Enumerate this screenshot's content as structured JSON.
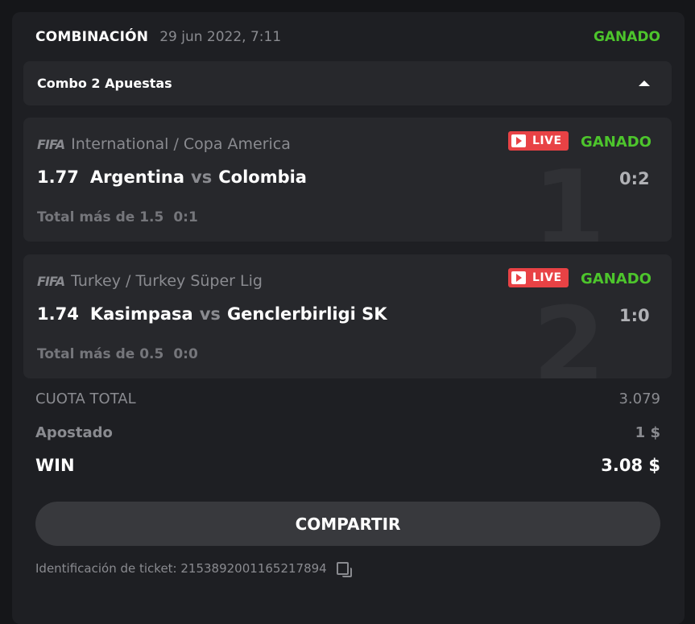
{
  "header": {
    "title": "COMBINACIÓN",
    "date": "29 jun 2022, 7:11",
    "status": "GANADO"
  },
  "combo": {
    "label": "Combo 2 Apuestas"
  },
  "bets": [
    {
      "index": "1",
      "provider": "FIFA",
      "league": "International / Copa America",
      "live": "LIVE",
      "status": "GANADO",
      "odd": "1.77",
      "home": "Argentina",
      "vs": "vs",
      "away": "Colombia",
      "score": "0:2",
      "market": "Total más de 1.5",
      "market_score": "0:1"
    },
    {
      "index": "2",
      "provider": "FIFA",
      "league": "Turkey / Turkey Süper Lig",
      "live": "LIVE",
      "status": "GANADO",
      "odd": "1.74",
      "home": "Kasimpasa",
      "vs": "vs",
      "away": "Genclerbirligi SK",
      "score": "1:0",
      "market": "Total más de 0.5",
      "market_score": "0:0"
    }
  ],
  "summary": {
    "total_odds_label": "CUOTA TOTAL",
    "total_odds": "3.079",
    "staked_label": "Apostado",
    "staked": "1 $",
    "win_label": "WIN",
    "win": "3.08 $"
  },
  "share_label": "COMPARTIR",
  "ticket": {
    "label": "Identificación de ticket: 2153892001165217894"
  },
  "colors": {
    "won": "#4dc52c",
    "live": "#e84245"
  }
}
